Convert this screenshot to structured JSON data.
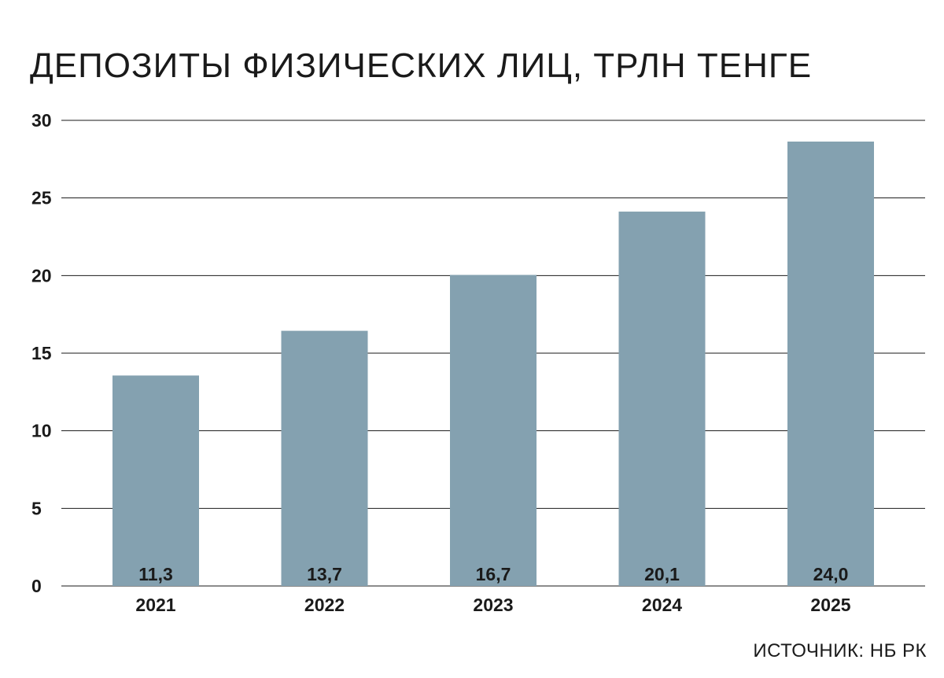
{
  "colors": {
    "bar": "#84a1b0",
    "grid": "#1a1a1a",
    "text": "#1a1a1a",
    "background": "#ffffff"
  },
  "chart_data": {
    "type": "bar",
    "title": "ДЕПОЗИТЫ ФИЗИЧЕСКИХ ЛИЦ, ТРЛН ТЕНГЕ",
    "source": "ИСТОЧНИК: НБ РК",
    "categories": [
      "2021",
      "2022",
      "2023",
      "2024",
      "2025"
    ],
    "values": [
      11.3,
      13.7,
      16.7,
      20.1,
      24.0
    ],
    "value_labels": [
      "11,3",
      "13,7",
      "16,7",
      "20,1",
      "24,0"
    ],
    "y_tick_labels": [
      "0",
      "5",
      "10",
      "15",
      "20",
      "25",
      "30"
    ],
    "ylim": [
      0,
      25
    ],
    "xlabel": "",
    "ylabel": "",
    "grid": true,
    "legend": "none"
  }
}
